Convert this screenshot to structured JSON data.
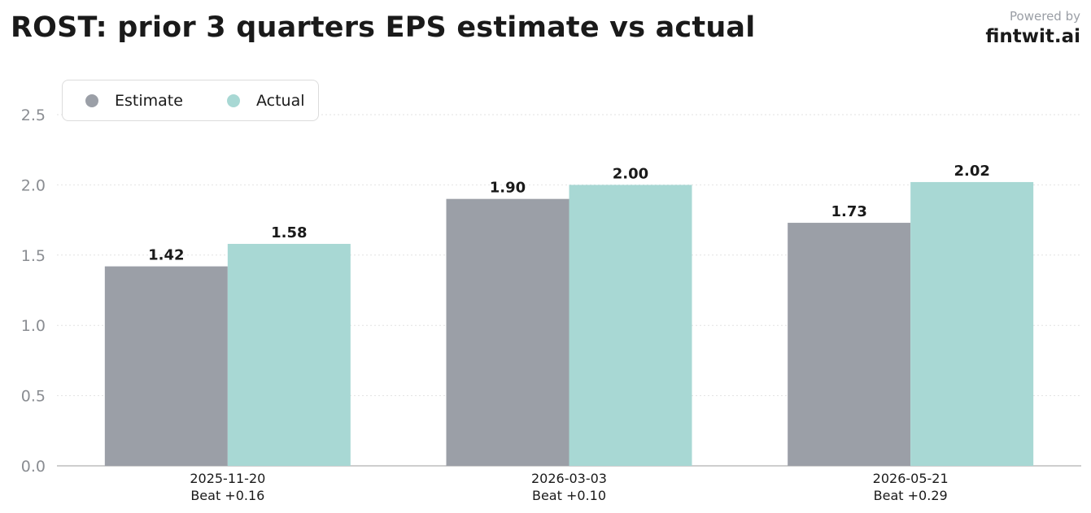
{
  "header": {
    "title": "ROST: prior 3 quarters EPS estimate vs actual",
    "powered_by": "Powered by",
    "brand": "fintwit.ai"
  },
  "chart_data": {
    "type": "bar",
    "categories": [
      "2025-11-20",
      "2026-03-03",
      "2026-05-21"
    ],
    "category_sublabels": [
      "Beat +0.16",
      "Beat +0.10",
      "Beat +0.29"
    ],
    "series": [
      {
        "name": "Estimate",
        "values": [
          1.42,
          1.9,
          1.73
        ],
        "labels": [
          "1.42",
          "1.90",
          "1.73"
        ],
        "color": "#9b9fa7"
      },
      {
        "name": "Actual",
        "values": [
          1.58,
          2.0,
          2.02
        ],
        "labels": [
          "1.58",
          "2.00",
          "2.02"
        ],
        "color": "#a8d8d4"
      }
    ],
    "yticks": [
      "0.0",
      "0.5",
      "1.0",
      "1.5",
      "2.0",
      "2.5"
    ],
    "ylim": [
      0,
      2.7
    ],
    "grid": true,
    "legend": "top-left"
  }
}
